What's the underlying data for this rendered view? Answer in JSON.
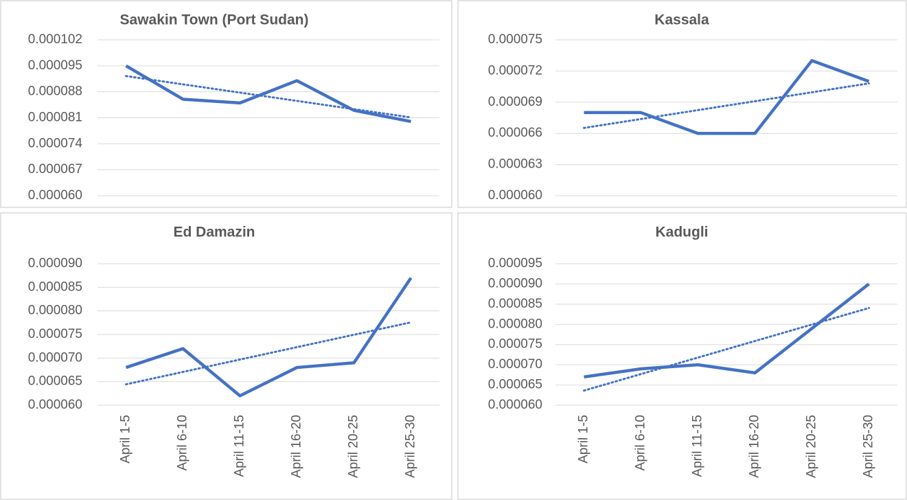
{
  "chart_data": [
    {
      "type": "line",
      "title": "Sawakin Town (Port Sudan)",
      "color": "#4472c4",
      "trendline": "linear",
      "grid": true,
      "values": [
        9.5e-05,
        8.6e-05,
        8.5e-05,
        9.1e-05,
        8.3e-05,
        8e-05
      ],
      "ylim": [
        6e-05,
        0.000102
      ],
      "yticks": [
        {
          "value": 6e-05,
          "label": "0.000060"
        },
        6.7e-05,
        7.4e-05,
        8.1e-05,
        8.8e-05,
        9.5e-05,
        0.000102
      ]
    },
    {
      "type": "line",
      "title": "Kassala",
      "color": "#4472c4",
      "trendline": "linear",
      "grid": true,
      "values": [
        6.8e-05,
        6.8e-05,
        6.6e-05,
        6.6e-05,
        7.3e-05,
        7.1e-05
      ],
      "ylim": [
        6e-05,
        7.5e-05
      ],
      "yticks": [
        {
          "value": 6e-05,
          "label": "0.000060"
        },
        6.3e-05,
        6.6e-05,
        6.9e-05,
        7.2e-05,
        7.5e-05
      ]
    },
    {
      "type": "line",
      "title": "Ed Damazin",
      "color": "#4472c4",
      "trendline": "linear",
      "grid": true,
      "categories": [
        "April 1-5",
        "April 6-10",
        "April 11-15",
        "April 16-20",
        "April 20-25",
        "April 25-30"
      ],
      "values": [
        6.8e-05,
        7.2e-05,
        6.2e-05,
        6.8e-05,
        6.9e-05,
        8.7e-05
      ],
      "ylim": [
        6e-05,
        9e-05
      ],
      "yticks": [
        {
          "value": 6e-05,
          "label": "0.000060"
        },
        6.5e-05,
        {
          "value": 7e-05,
          "label": "0.000070"
        },
        7.5e-05,
        {
          "value": 8e-05,
          "label": "0.000080"
        },
        8.5e-05,
        {
          "value": 9e-05,
          "label": "0.000090"
        }
      ]
    },
    {
      "type": "line",
      "title": "Kadugli",
      "color": "#4472c4",
      "trendline": "linear",
      "grid": true,
      "categories": [
        "April 1-5",
        "April 6-10",
        "April 11-15",
        "April 16-20",
        "April 20-25",
        "April 25-30"
      ],
      "values": [
        6.7e-05,
        6.9e-05,
        7e-05,
        6.8e-05,
        7.9e-05,
        9e-05
      ],
      "ylim": [
        6e-05,
        9.5e-05
      ],
      "yticks": [
        {
          "value": 6e-05,
          "label": "0.000060"
        },
        6.5e-05,
        {
          "value": 7e-05,
          "label": "0.000070"
        },
        7.5e-05,
        {
          "value": 8e-05,
          "label": "0.000080"
        },
        8.5e-05,
        {
          "value": 9e-05,
          "label": "0.000090"
        },
        9.5e-05
      ]
    }
  ]
}
